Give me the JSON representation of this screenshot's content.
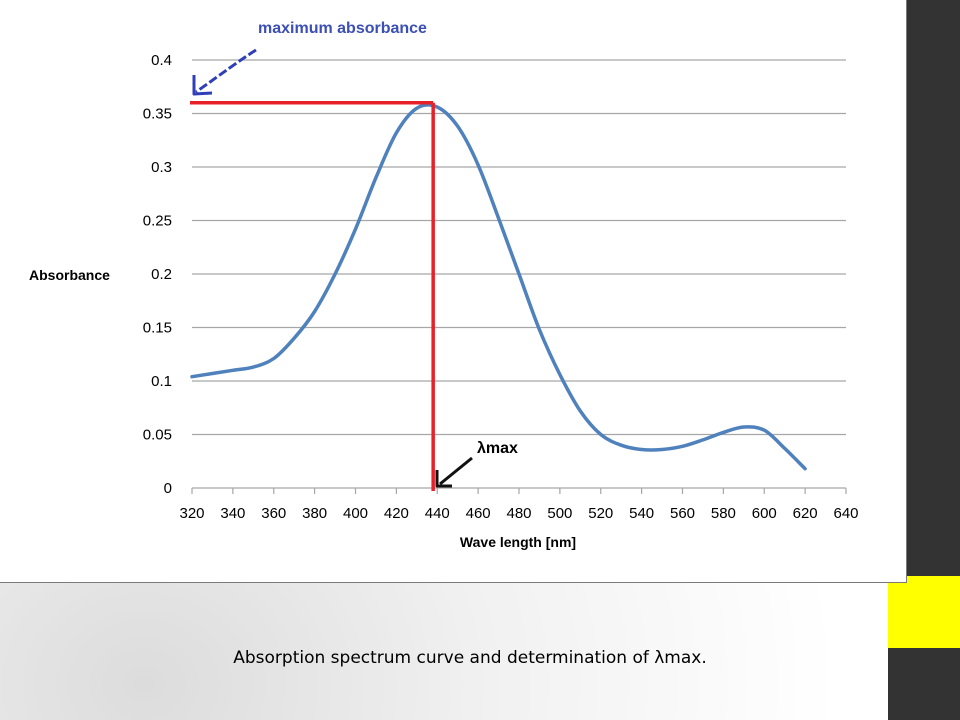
{
  "slide": {
    "caption": "Absorption spectrum curve and determination of λmax."
  },
  "colors": {
    "background_dark": "#333333",
    "accent_yellow": "#ffff00",
    "curve": "#4f81bd",
    "marker_lines": "#e8202a",
    "annotation_arrow_blue": "#2f3fb8",
    "annotation_arrow_black": "#111111",
    "grid": "#a6a6a6"
  },
  "chart_data": {
    "type": "line",
    "title": "",
    "xlabel": "Wave length [nm]",
    "ylabel": "Absorbance",
    "xlim": [
      320,
      640
    ],
    "ylim": [
      0,
      0.4
    ],
    "x_ticks": [
      320,
      340,
      360,
      380,
      400,
      420,
      440,
      460,
      480,
      500,
      520,
      540,
      560,
      580,
      600,
      620,
      640
    ],
    "y_ticks": [
      0,
      0.05,
      0.1,
      0.15,
      0.2,
      0.25,
      0.3,
      0.35,
      0.4
    ],
    "y_tick_labels": [
      "0",
      "0.05",
      "0.1",
      "0.15",
      "0.2",
      "0.25",
      "0.3",
      "0.35",
      "0.4"
    ],
    "grid": "horizontal",
    "series": [
      {
        "x": [
          320,
          330,
          340,
          350,
          360,
          370,
          380,
          390,
          400,
          410,
          420,
          430,
          440,
          450,
          460,
          470,
          480,
          490,
          500,
          510,
          520,
          530,
          540,
          550,
          560,
          570,
          580,
          590,
          600,
          610,
          620
        ],
        "y": [
          0.104,
          0.107,
          0.11,
          0.113,
          0.121,
          0.14,
          0.165,
          0.2,
          0.242,
          0.29,
          0.332,
          0.355,
          0.356,
          0.338,
          0.302,
          0.252,
          0.2,
          0.148,
          0.106,
          0.072,
          0.05,
          0.04,
          0.036,
          0.036,
          0.039,
          0.045,
          0.052,
          0.057,
          0.054,
          0.037,
          0.018
        ]
      }
    ],
    "annotations": {
      "max_label": "maximum absorbance",
      "lambda_label": "λmax",
      "peak_x": 438,
      "peak_y": 0.36
    }
  }
}
